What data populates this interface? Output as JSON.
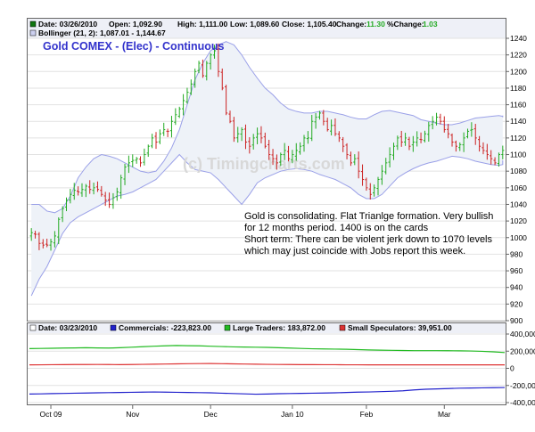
{
  "chart_data": [
    {
      "type": "ohlc",
      "title": "Gold COMEX - (Elec) - Continuous",
      "watermark": "(c) Timingcharts.com",
      "header": {
        "date_label": "Date: 03/26/2010",
        "open": "Open: 1,092.90",
        "high": "High: 1,111.00",
        "low": "Low: 1,089.60",
        "close": "Close: 1,105.40",
        "change_label": "Change:",
        "change_value": "11.30",
        "pct_label": "%Change:",
        "pct_value": "1.03"
      },
      "bollinger_label": "Bollinger (21, 2): 1,087.01 - 1,144.67",
      "annotation": [
        "Gold is consolidating. Flat Trianlge formation. Very bullish",
        "for 12 months period. 1400 is on the cards",
        "Short term: There can be violent jerk down to 1070 levels",
        "which may just coincide with Jobs report this week."
      ],
      "ylim": [
        900,
        1240
      ],
      "y_ticks": [
        "1240",
        "1220",
        "1200",
        "1180",
        "1160",
        "1140",
        "1120",
        "1100",
        "1080",
        "1060",
        "1040",
        "1020",
        "1000",
        "980",
        "960",
        "940",
        "920",
        "900"
      ],
      "x_labels": [
        "Oct 09",
        "Nov",
        "Dec",
        "Jan 10",
        "Feb",
        "Mar"
      ],
      "x_label_idx": [
        5,
        26,
        46,
        67,
        86,
        106
      ],
      "n_bars": 122,
      "closes": [
        1006,
        1004,
        993,
        991,
        991,
        995,
        1002,
        1022,
        1035,
        1045,
        1052,
        1057,
        1055,
        1058,
        1062,
        1058,
        1060,
        1058,
        1052,
        1045,
        1040,
        1048,
        1055,
        1072,
        1085,
        1090,
        1093,
        1095,
        1090,
        1100,
        1110,
        1120,
        1115,
        1125,
        1130,
        1128,
        1140,
        1148,
        1155,
        1165,
        1175,
        1185,
        1200,
        1210,
        1195,
        1210,
        1220,
        1225,
        1200,
        1180,
        1150,
        1140,
        1120,
        1125,
        1130,
        1115,
        1110,
        1120,
        1125,
        1120,
        1110,
        1100,
        1095,
        1090,
        1100,
        1105,
        1095,
        1100,
        1105,
        1110,
        1120,
        1120,
        1140,
        1145,
        1150,
        1140,
        1130,
        1135,
        1125,
        1120,
        1110,
        1100,
        1090,
        1095,
        1080,
        1070,
        1060,
        1052,
        1060,
        1070,
        1080,
        1090,
        1100,
        1110,
        1120,
        1115,
        1120,
        1110,
        1115,
        1120,
        1118,
        1125,
        1135,
        1140,
        1145,
        1140,
        1130,
        1125,
        1115,
        1110,
        1112,
        1120,
        1128,
        1130,
        1120,
        1110,
        1105,
        1100,
        1095,
        1090,
        1100,
        1105
      ],
      "bb_upper": [
        1040,
        1040,
        1032,
        1030,
        1035,
        1050,
        1072,
        1085,
        1095,
        1100,
        1098,
        1095,
        1090,
        1085,
        1080,
        1078,
        1080,
        1092,
        1108,
        1130,
        1160,
        1190,
        1210,
        1225,
        1232,
        1236,
        1232,
        1220,
        1205,
        1192,
        1180,
        1172,
        1162,
        1155,
        1152,
        1150,
        1150,
        1152,
        1152,
        1150,
        1148,
        1145,
        1143,
        1143,
        1148,
        1152,
        1153,
        1151,
        1149,
        1147,
        1142,
        1140,
        1138,
        1136,
        1136,
        1138,
        1141,
        1144,
        1145,
        1146,
        1147,
        1146,
        1146,
        1146,
        1147,
        1146,
        1145,
        1145
      ],
      "bb_lower": [
        930,
        950,
        965,
        985,
        1005,
        1018,
        1025,
        1030,
        1035,
        1040,
        1045,
        1050,
        1052,
        1055,
        1060,
        1065,
        1070,
        1080,
        1090,
        1100,
        1090,
        1082,
        1080,
        1078,
        1070,
        1060,
        1050,
        1040,
        1052,
        1066,
        1072,
        1076,
        1080,
        1082,
        1083,
        1082,
        1080,
        1076,
        1073,
        1070,
        1065,
        1060,
        1052,
        1047,
        1047,
        1052,
        1062,
        1072,
        1078,
        1083,
        1087,
        1090,
        1092,
        1095,
        1098,
        1097,
        1095,
        1092,
        1090,
        1088,
        1087,
        1088,
        1089,
        1090,
        1092,
        1092,
        1092,
        1093
      ],
      "bb_x": [
        0,
        2,
        4,
        6,
        8,
        10,
        12,
        14,
        16,
        18,
        20,
        22,
        24,
        26,
        28,
        30,
        32,
        34,
        36,
        38,
        40,
        42,
        44,
        46,
        48,
        50,
        52,
        54,
        56,
        58,
        60,
        62,
        64,
        66,
        68,
        70,
        72,
        74,
        76,
        78,
        80,
        82,
        84,
        86,
        88,
        90,
        92,
        94,
        96,
        98,
        100,
        102,
        104,
        106,
        108,
        110,
        112,
        114,
        116,
        118,
        120,
        121,
        121,
        121,
        121,
        121,
        121,
        121
      ]
    },
    {
      "type": "line",
      "header": {
        "date_label": "Date: 03/23/2010",
        "commercials": "Commercials: -223,823.00",
        "large": "Large Traders: 183,872.00",
        "small": "Small Speculators: 39,951.00"
      },
      "ylim": [
        -400000,
        400000
      ],
      "y_ticks": [
        "400,000",
        "200,000",
        "0",
        "-200,000",
        "-400,000"
      ],
      "series": [
        {
          "name": "Commercials",
          "color": "#2222cc",
          "values": [
            -300000,
            -298000,
            -295000,
            -293000,
            -290000,
            -288000,
            -286000,
            -284000,
            -282000,
            -280000,
            -278000,
            -276000,
            -278000,
            -280000,
            -282000,
            -284000,
            -286000,
            -290000,
            -294000,
            -298000,
            -302000,
            -300000,
            -296000,
            -294000,
            -292000,
            -290000,
            -288000,
            -286000,
            -282000,
            -278000,
            -276000,
            -272000,
            -268000,
            -262000,
            -252000,
            -244000,
            -240000,
            -236000,
            -232000,
            -230000,
            -228000,
            -226000,
            -224000
          ]
        },
        {
          "name": "Large Traders",
          "color": "#22bb22",
          "values": [
            230000,
            232000,
            234000,
            236000,
            238000,
            240000,
            238000,
            236000,
            240000,
            246000,
            252000,
            258000,
            262000,
            266000,
            264000,
            262000,
            258000,
            254000,
            250000,
            248000,
            246000,
            244000,
            240000,
            236000,
            232000,
            228000,
            226000,
            224000,
            222000,
            218000,
            214000,
            212000,
            210000,
            208000,
            206000,
            206000,
            206000,
            205000,
            204000,
            202000,
            198000,
            192000,
            184000
          ]
        },
        {
          "name": "Small Speculators",
          "color": "#dd3333",
          "values": [
            40000,
            41000,
            42000,
            43000,
            44000,
            44000,
            45000,
            44000,
            43000,
            44000,
            46000,
            48000,
            50000,
            52000,
            54000,
            55000,
            56000,
            54000,
            52000,
            50000,
            48000,
            46000,
            45000,
            44000,
            43000,
            43000,
            42000,
            42000,
            41000,
            41000,
            40000,
            40000,
            40000,
            40000,
            40000,
            40000,
            40000,
            40000,
            40000,
            40000,
            40000,
            40000,
            40000
          ]
        }
      ]
    }
  ],
  "colors": {
    "up": "#22aa22",
    "down": "#cc2222",
    "band": "#9aa0e8",
    "band_fill": "#eef2f8",
    "title": "#3333cc"
  }
}
